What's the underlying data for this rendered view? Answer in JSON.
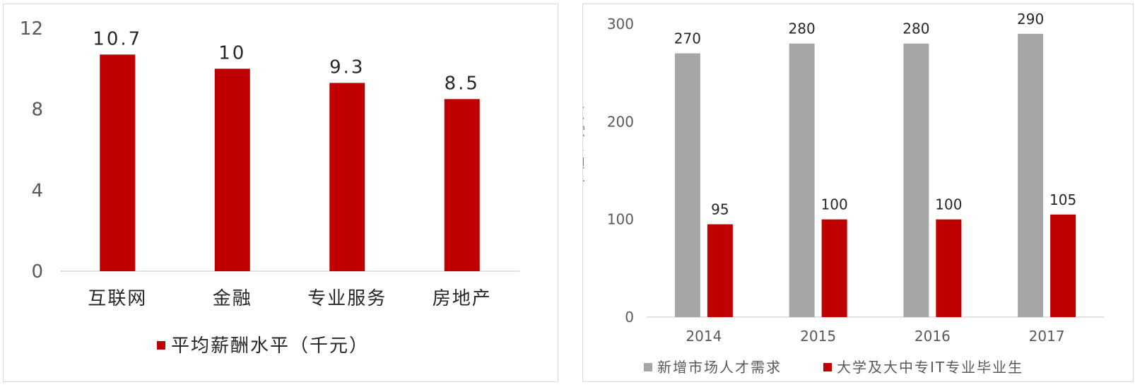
{
  "chart_data": [
    {
      "type": "bar",
      "title": "",
      "categories": [
        "互联网",
        "金融",
        "专业服务",
        "房地产"
      ],
      "series": [
        {
          "name": "平均薪酬水平（千元）",
          "values": [
            10.7,
            10,
            9.3,
            8.5
          ],
          "value_labels": [
            "10.7",
            "10",
            "9.3",
            "8.5"
          ]
        }
      ],
      "ylim": [
        0,
        12
      ],
      "yticks": [
        "0",
        "4",
        "8",
        "12"
      ],
      "xlabel": "",
      "ylabel": "",
      "grid": false,
      "legend": "bottom",
      "colors": [
        "#c00000"
      ]
    },
    {
      "type": "bar",
      "title": "",
      "categories": [
        "2014",
        "2015",
        "2016",
        "2017"
      ],
      "series": [
        {
          "name": "新增市场人才需求",
          "values": [
            270,
            280,
            280,
            290
          ]
        },
        {
          "name": "大学及大中专IT专业毕业生",
          "values": [
            95,
            100,
            100,
            105
          ]
        }
      ],
      "ylim": [
        0,
        300
      ],
      "yticks": [
        "0",
        "100",
        "200",
        "300"
      ],
      "xlabel": "",
      "ylabel": "单位：万人",
      "grid": false,
      "legend": "bottom",
      "colors": [
        "#a6a6a6",
        "#c00000"
      ]
    }
  ]
}
